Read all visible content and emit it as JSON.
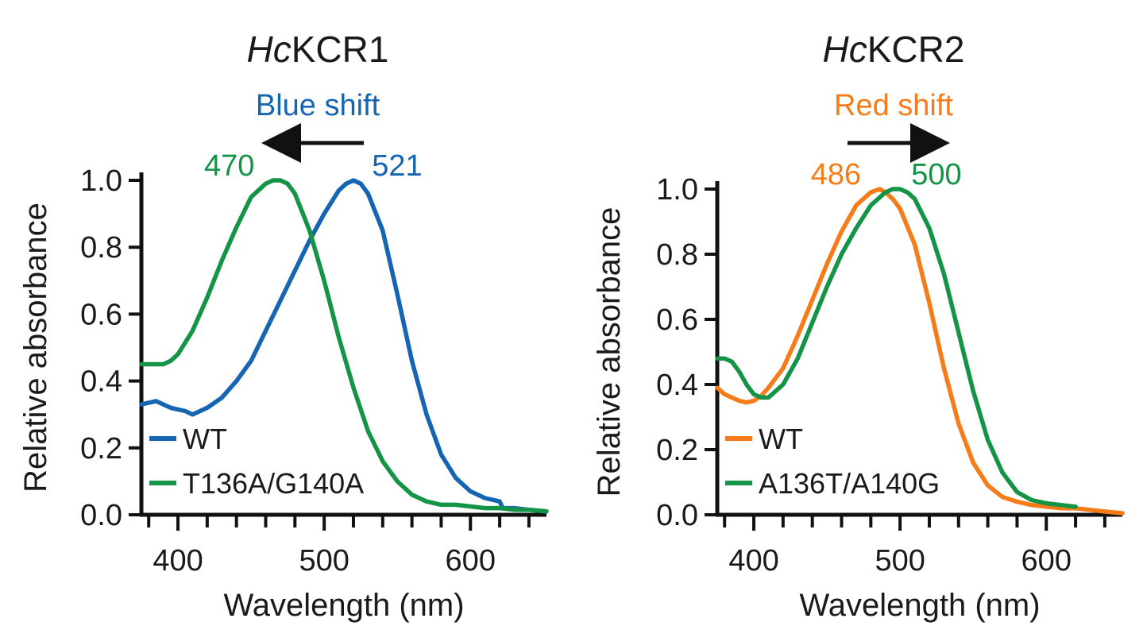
{
  "colors": {
    "blue": "#1565b2",
    "green": "#159447",
    "orange": "#f57c18",
    "axis": "#111111"
  },
  "chart_data": [
    {
      "type": "line",
      "title_italic": "Hc",
      "title_rest": "KCR1",
      "xlabel": "Wavelength (nm)",
      "ylabel": "Relative absorbance",
      "xlim": [
        375,
        652
      ],
      "ylim": [
        0,
        1.0
      ],
      "xticks": [
        400,
        500,
        600
      ],
      "xtick_labels": [
        "400",
        "500",
        "600"
      ],
      "yticks": [
        0.0,
        0.2,
        0.4,
        0.6,
        0.8,
        1.0
      ],
      "ytick_labels": [
        "0.0",
        "0.2",
        "0.4",
        "0.6",
        "0.8",
        "1.0"
      ],
      "shift_label": "Blue shift",
      "shift_color": "#1565b2",
      "shift_direction": "left",
      "legend_position": "bottom-left",
      "series": [
        {
          "name": "WT",
          "color": "#1565b2",
          "peak_label": "521",
          "x": [
            375,
            385,
            395,
            405,
            410,
            420,
            430,
            440,
            450,
            460,
            470,
            480,
            490,
            500,
            510,
            515,
            520,
            525,
            530,
            540,
            550,
            560,
            570,
            580,
            590,
            600,
            610,
            620,
            622,
            630,
            640,
            652
          ],
          "y": [
            0.33,
            0.34,
            0.32,
            0.31,
            0.3,
            0.32,
            0.35,
            0.4,
            0.46,
            0.55,
            0.64,
            0.73,
            0.82,
            0.9,
            0.97,
            0.99,
            1.0,
            0.99,
            0.96,
            0.85,
            0.66,
            0.46,
            0.3,
            0.18,
            0.11,
            0.07,
            0.05,
            0.04,
            0.02,
            0.02,
            0.015,
            0.01
          ]
        },
        {
          "name": "T136A/G140A",
          "color": "#159447",
          "peak_label": "470",
          "x": [
            375,
            380,
            385,
            390,
            395,
            400,
            410,
            420,
            430,
            440,
            450,
            460,
            465,
            470,
            475,
            480,
            490,
            500,
            510,
            520,
            530,
            540,
            550,
            560,
            570,
            580,
            590,
            600,
            610,
            620,
            630,
            640,
            652
          ],
          "y": [
            0.45,
            0.45,
            0.45,
            0.45,
            0.46,
            0.48,
            0.55,
            0.65,
            0.76,
            0.86,
            0.95,
            0.99,
            1.0,
            1.0,
            0.99,
            0.96,
            0.85,
            0.7,
            0.53,
            0.38,
            0.25,
            0.16,
            0.1,
            0.06,
            0.04,
            0.03,
            0.03,
            0.025,
            0.02,
            0.02,
            0.015,
            0.015,
            0.01
          ]
        }
      ]
    },
    {
      "type": "line",
      "title_italic": "Hc",
      "title_rest": "KCR2",
      "xlabel": "Wavelength (nm)",
      "ylabel": "Relative absorbance",
      "xlim": [
        375,
        652
      ],
      "ylim": [
        0,
        1.0
      ],
      "xticks": [
        400,
        500,
        600
      ],
      "xtick_labels": [
        "400",
        "500",
        "600"
      ],
      "yticks": [
        0.0,
        0.2,
        0.4,
        0.6,
        0.8,
        1.0
      ],
      "ytick_labels": [
        "0.0",
        "0.2",
        "0.4",
        "0.6",
        "0.8",
        "1.0"
      ],
      "shift_label": "Red shift",
      "shift_color": "#f57c18",
      "shift_direction": "right",
      "legend_position": "bottom-left",
      "series": [
        {
          "name": "WT",
          "color": "#f57c18",
          "peak_label": "486",
          "x": [
            375,
            380,
            385,
            390,
            395,
            400,
            405,
            410,
            420,
            430,
            440,
            450,
            460,
            470,
            480,
            486,
            490,
            495,
            500,
            510,
            520,
            530,
            540,
            550,
            560,
            570,
            580,
            590,
            600,
            610,
            620,
            630,
            640,
            652
          ],
          "y": [
            0.39,
            0.37,
            0.36,
            0.35,
            0.345,
            0.35,
            0.365,
            0.39,
            0.45,
            0.55,
            0.66,
            0.77,
            0.87,
            0.95,
            0.99,
            1.0,
            0.99,
            0.97,
            0.94,
            0.83,
            0.65,
            0.45,
            0.28,
            0.16,
            0.09,
            0.055,
            0.04,
            0.03,
            0.025,
            0.02,
            0.02,
            0.015,
            0.01,
            0.005
          ]
        },
        {
          "name": "A136T/A140G",
          "color": "#159447",
          "peak_label": "500",
          "x": [
            375,
            380,
            385,
            390,
            395,
            400,
            405,
            410,
            420,
            430,
            440,
            450,
            460,
            470,
            480,
            490,
            495,
            500,
            505,
            510,
            520,
            530,
            540,
            550,
            560,
            570,
            580,
            590,
            600,
            610,
            620
          ],
          "y": [
            0.48,
            0.48,
            0.47,
            0.44,
            0.4,
            0.37,
            0.36,
            0.36,
            0.4,
            0.48,
            0.59,
            0.7,
            0.8,
            0.88,
            0.95,
            0.99,
            1.0,
            1.0,
            0.99,
            0.97,
            0.88,
            0.74,
            0.56,
            0.38,
            0.23,
            0.13,
            0.07,
            0.045,
            0.035,
            0.03,
            0.025
          ]
        }
      ]
    }
  ]
}
